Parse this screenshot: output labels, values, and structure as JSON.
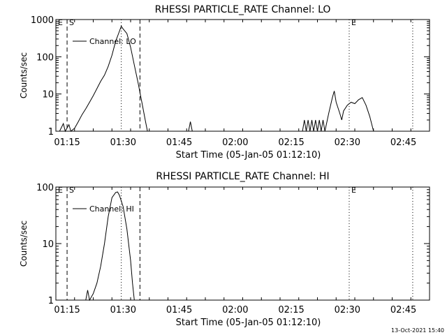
{
  "timestamp": "13-Oct-2021 15:40",
  "chart_data": [
    {
      "type": "line",
      "title": "RHESSI PARTICLE_RATE Channel: LO",
      "xlabel": "Start Time (05-Jan-05 01:12:10)",
      "ylabel": "Counts/sec",
      "yscale": "log",
      "xlim": [
        "01:12",
        "02:52"
      ],
      "ylim": [
        1,
        1000
      ],
      "x_ticks": [
        "01:15",
        "01:30",
        "01:45",
        "02:00",
        "02:15",
        "02:30",
        "02:45"
      ],
      "y_ticks": [
        "1",
        "10",
        "100",
        "1000"
      ],
      "legend": {
        "position": "top-left",
        "entries": [
          "Channel: LO"
        ]
      },
      "markers": [
        {
          "label": "E",
          "time": "01:12",
          "style": "dashed"
        },
        {
          "label": "S",
          "time": "01:15",
          "style": "dashed"
        },
        {
          "label": "",
          "time": "01:29.5",
          "style": "dotted"
        },
        {
          "label": "",
          "time": "01:34.5",
          "style": "dashed"
        },
        {
          "label": "E",
          "time": "02:30.5",
          "style": "dotted"
        },
        {
          "label": "",
          "time": "02:47.5",
          "style": "dotted"
        }
      ],
      "series": [
        {
          "name": "Channel: LO",
          "points": [
            [
              "01:13",
              1
            ],
            [
              "01:14",
              1.6
            ],
            [
              "01:14.5",
              1
            ],
            [
              "01:15.5",
              1.5
            ],
            [
              "01:16",
              1
            ],
            [
              "01:17",
              1.2
            ],
            [
              "01:18",
              1.8
            ],
            [
              "01:19",
              2.8
            ],
            [
              "01:20",
              4
            ],
            [
              "01:21",
              6
            ],
            [
              "01:22",
              9
            ],
            [
              "01:23",
              14
            ],
            [
              "01:24",
              22
            ],
            [
              "01:25",
              32
            ],
            [
              "01:26",
              55
            ],
            [
              "01:27",
              110
            ],
            [
              "01:28",
              260
            ],
            [
              "01:29",
              480
            ],
            [
              "01:29.5",
              660
            ],
            [
              "01:30",
              560
            ],
            [
              "01:31",
              420
            ],
            [
              "01:32",
              180
            ],
            [
              "01:33",
              60
            ],
            [
              "01:34",
              20
            ],
            [
              "01:35",
              6
            ],
            [
              "01:36",
              1.8
            ],
            [
              "01:36.5",
              1
            ],
            [
              "01:47.5",
              1
            ],
            [
              "01:48",
              1.8
            ],
            [
              "01:48.5",
              1
            ],
            [
              "02:18",
              1
            ],
            [
              "02:18.5",
              2
            ],
            [
              "02:19",
              1
            ],
            [
              "02:19.5",
              2
            ],
            [
              "02:20",
              1
            ],
            [
              "02:20.5",
              2
            ],
            [
              "02:21",
              1
            ],
            [
              "02:21.5",
              2
            ],
            [
              "02:22",
              1
            ],
            [
              "02:22.5",
              2
            ],
            [
              "02:23",
              1
            ],
            [
              "02:23.5",
              2
            ],
            [
              "02:24",
              1
            ],
            [
              "02:25",
              3
            ],
            [
              "02:26",
              8
            ],
            [
              "02:26.5",
              12
            ],
            [
              "02:27",
              6
            ],
            [
              "02:28",
              3
            ],
            [
              "02:28.5",
              2
            ],
            [
              "02:29",
              3.5
            ],
            [
              "02:30",
              5
            ],
            [
              "02:31",
              6
            ],
            [
              "02:32",
              5.5
            ],
            [
              "02:33",
              7
            ],
            [
              "02:34",
              8
            ],
            [
              "02:35",
              5
            ],
            [
              "02:36",
              2.5
            ],
            [
              "02:37",
              1
            ]
          ]
        }
      ]
    },
    {
      "type": "line",
      "title": "RHESSI PARTICLE_RATE Channel: HI",
      "xlabel": "Start Time (05-Jan-05 01:12:10)",
      "ylabel": "Counts/sec",
      "yscale": "log",
      "xlim": [
        "01:12",
        "02:52"
      ],
      "ylim": [
        1,
        100
      ],
      "x_ticks": [
        "01:15",
        "01:30",
        "01:45",
        "02:00",
        "02:15",
        "02:30",
        "02:45"
      ],
      "y_ticks": [
        "1",
        "10",
        "100"
      ],
      "legend": {
        "position": "top-left",
        "entries": [
          "Channel: HI"
        ]
      },
      "markers": [
        {
          "label": "E",
          "time": "01:12",
          "style": "dashed"
        },
        {
          "label": "S",
          "time": "01:15",
          "style": "dashed"
        },
        {
          "label": "",
          "time": "01:29.5",
          "style": "dotted"
        },
        {
          "label": "",
          "time": "01:34.5",
          "style": "dashed"
        },
        {
          "label": "E",
          "time": "02:30.5",
          "style": "dotted"
        },
        {
          "label": "",
          "time": "02:47.5",
          "style": "dotted"
        }
      ],
      "series": [
        {
          "name": "Channel: HI",
          "points": [
            [
              "01:20",
              1
            ],
            [
              "01:20.5",
              1.5
            ],
            [
              "01:21",
              1
            ],
            [
              "01:22",
              1.3
            ],
            [
              "01:23",
              2
            ],
            [
              "01:24",
              4
            ],
            [
              "01:25",
              10
            ],
            [
              "01:26",
              30
            ],
            [
              "01:27",
              65
            ],
            [
              "01:28",
              80
            ],
            [
              "01:28.5",
              82
            ],
            [
              "01:29",
              72
            ],
            [
              "01:30",
              45
            ],
            [
              "01:31",
              18
            ],
            [
              "01:32",
              5
            ],
            [
              "01:32.5",
              2
            ],
            [
              "01:33",
              1
            ]
          ]
        }
      ]
    }
  ]
}
